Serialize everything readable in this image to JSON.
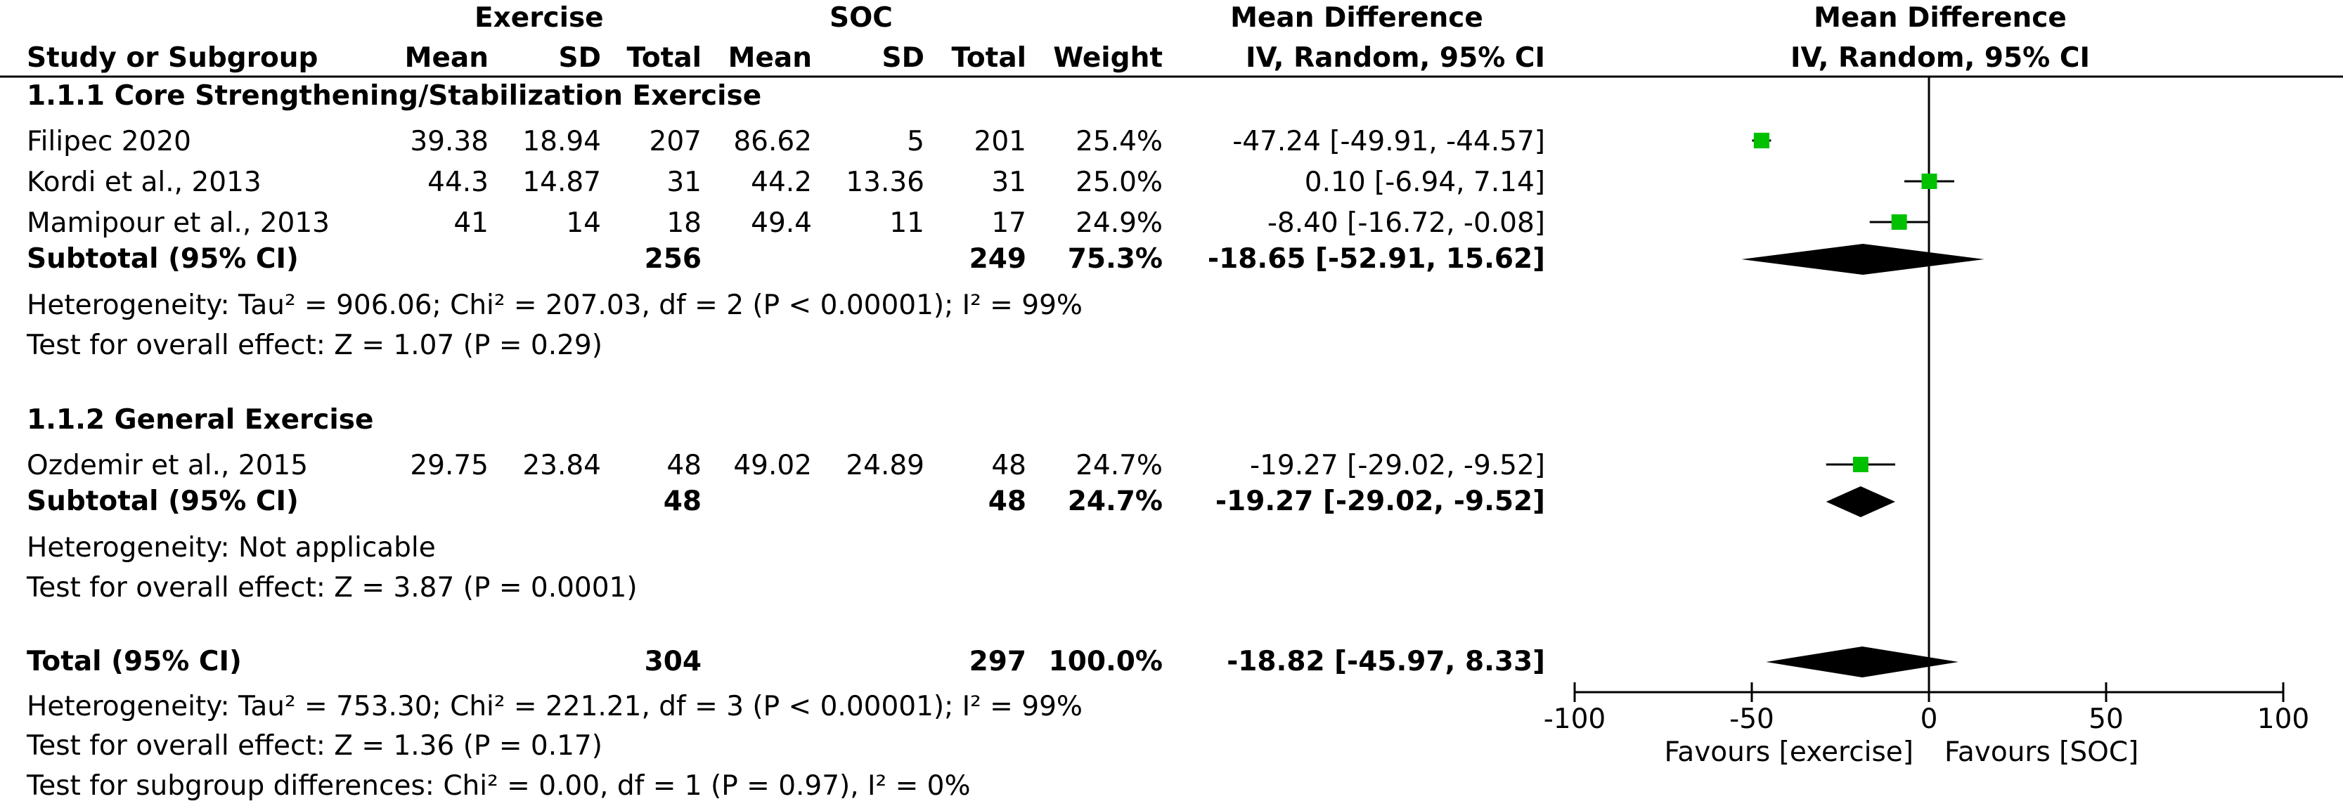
{
  "headers": {
    "group1": "Exercise",
    "group2": "SOC",
    "study": "Study or Subgroup",
    "mean": "Mean",
    "sd": "SD",
    "total": "Total",
    "weight": "Weight",
    "effect_title": "Mean Difference",
    "effect_method": "IV, Random, 95% CI",
    "plot_title": "Mean Difference",
    "plot_method": "IV, Random, 95% CI"
  },
  "subgroups": [
    {
      "title": "1.1.1 Core Strengthening/Stabilization Exercise",
      "studies": [
        {
          "name": "Filipec 2020",
          "m1": "39.38",
          "sd1": "18.94",
          "n1": "207",
          "m2": "86.62",
          "sd2": "5",
          "n2": "201",
          "weight": "25.4%",
          "ci_text": "-47.24 [-49.91, -44.57]"
        },
        {
          "name": "Kordi et al., 2013",
          "m1": "44.3",
          "sd1": "14.87",
          "n1": "31",
          "m2": "44.2",
          "sd2": "13.36",
          "n2": "31",
          "weight": "25.0%",
          "ci_text": "0.10 [-6.94, 7.14]"
        },
        {
          "name": "Mamipour et al., 2013",
          "m1": "41",
          "sd1": "14",
          "n1": "18",
          "m2": "49.4",
          "sd2": "11",
          "n2": "17",
          "weight": "24.9%",
          "ci_text": "-8.40 [-16.72, -0.08]"
        }
      ],
      "subtotal": {
        "label": "Subtotal (95% CI)",
        "n1": "256",
        "n2": "249",
        "weight": "75.3%",
        "ci_text": "-18.65 [-52.91, 15.62]"
      },
      "heterogeneity": "Heterogeneity: Tau² = 906.06; Chi² = 207.03, df = 2 (P < 0.00001); I² = 99%",
      "overall": "Test for overall effect: Z = 1.07 (P = 0.29)"
    },
    {
      "title": "1.1.2 General Exercise",
      "studies": [
        {
          "name": "Ozdemir et al., 2015",
          "m1": "29.75",
          "sd1": "23.84",
          "n1": "48",
          "m2": "49.02",
          "sd2": "24.89",
          "n2": "48",
          "weight": "24.7%",
          "ci_text": "-19.27 [-29.02, -9.52]"
        }
      ],
      "subtotal": {
        "label": "Subtotal (95% CI)",
        "n1": "48",
        "n2": "48",
        "weight": "24.7%",
        "ci_text": "-19.27 [-29.02, -9.52]"
      },
      "heterogeneity": "Heterogeneity: Not applicable",
      "overall": "Test for overall effect: Z = 3.87 (P = 0.0001)"
    }
  ],
  "total": {
    "label": "Total (95% CI)",
    "n1": "304",
    "n2": "297",
    "weight": "100.0%",
    "ci_text": "-18.82 [-45.97, 8.33]",
    "heterogeneity": "Heterogeneity: Tau² = 753.30; Chi² = 221.21, df = 3 (P < 0.00001); I² = 99%",
    "overall": "Test for overall effect: Z = 1.36 (P = 0.17)",
    "subgroup_diff": "Test for subgroup differences: Chi² = 0.00, df = 1 (P = 0.97), I² = 0%"
  },
  "chart_data": {
    "type": "forest",
    "xlim": [
      -100,
      100
    ],
    "xticks": [
      -100,
      -50,
      0,
      50,
      100
    ],
    "xtick_labels": [
      "-100",
      "-50",
      "0",
      "50",
      "100"
    ],
    "favours_left": "Favours [exercise]",
    "favours_right": "Favours [SOC]",
    "study_color": "#00c000",
    "studies": [
      {
        "name": "Filipec 2020",
        "md": -47.24,
        "lo": -49.91,
        "hi": -44.57,
        "weight": 25.4
      },
      {
        "name": "Kordi et al., 2013",
        "md": 0.1,
        "lo": -6.94,
        "hi": 7.14,
        "weight": 25.0
      },
      {
        "name": "Mamipour et al., 2013",
        "md": -8.4,
        "lo": -16.72,
        "hi": -0.08,
        "weight": 24.9
      },
      {
        "name": "Ozdemir et al., 2015",
        "md": -19.27,
        "lo": -29.02,
        "hi": -9.52,
        "weight": 24.7
      }
    ],
    "diamonds": [
      {
        "name": "Subtotal 1.1.1",
        "md": -18.65,
        "lo": -52.91,
        "hi": 15.62
      },
      {
        "name": "Subtotal 1.1.2",
        "md": -19.27,
        "lo": -29.02,
        "hi": -9.52
      },
      {
        "name": "Total",
        "md": -18.82,
        "lo": -45.97,
        "hi": 8.33
      }
    ]
  }
}
